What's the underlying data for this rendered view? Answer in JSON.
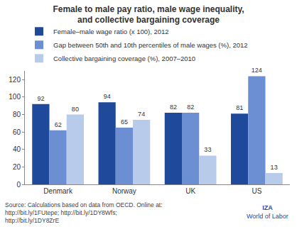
{
  "chart_data": {
    "type": "bar",
    "title": "Female to male pay ratio, male wage inequality, and collective bargaining coverage",
    "categories": [
      "Denmark",
      "Norway",
      "UK",
      "US"
    ],
    "series": [
      {
        "name": "Female–male wage ratio (x 100), 2012",
        "color": "#1f4a9c",
        "values": [
          92,
          94,
          82,
          81
        ]
      },
      {
        "name": "Gap between 50th and 10th percentiles of male wages (%), 2012",
        "color": "#6b8fd2",
        "values": [
          62,
          65,
          82,
          124
        ]
      },
      {
        "name": "Collective bargaining coverage (%), 2007–2010",
        "color": "#b9cbeb",
        "values": [
          80,
          74,
          33,
          13
        ]
      }
    ],
    "ylim": [
      0,
      130
    ],
    "yticks": [
      0,
      20,
      40,
      60,
      80,
      100,
      120
    ],
    "grid": false,
    "legend": "top left",
    "data_labels": true,
    "source": "Source: Calculations based on data from OECD. Online at: http://bit.ly/1FUtepe; http://bit.ly/1DY8Wfs; http://bit.ly/1DY8ZrE",
    "logo": [
      "IZA",
      "World of Labor"
    ]
  }
}
